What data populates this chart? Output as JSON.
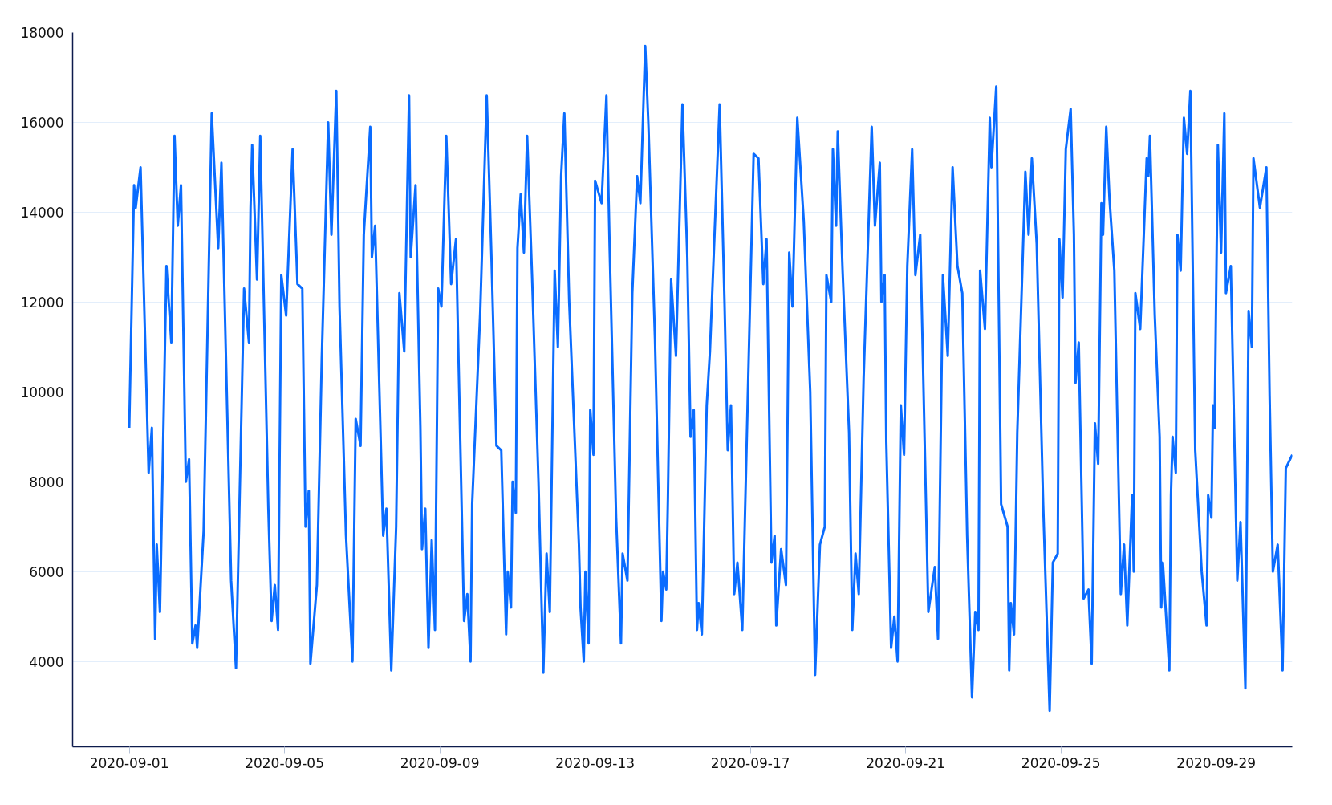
{
  "chart_data": {
    "type": "line",
    "xlim": [
      "2020-08-30T13:00",
      "2020-09-30T23:00"
    ],
    "xticks": [
      "2020-09-01",
      "2020-09-05",
      "2020-09-09",
      "2020-09-13",
      "2020-09-17",
      "2020-09-21",
      "2020-09-25",
      "2020-09-29"
    ],
    "ylim": [
      2100,
      18000
    ],
    "yticks": [
      4000,
      6000,
      8000,
      10000,
      12000,
      14000,
      16000,
      18000
    ],
    "grid": "y",
    "x": [
      "2020-09-01T00:00",
      "2020-09-01T03:00",
      "2020-09-01T04:00",
      "2020-09-01T07:00",
      "2020-09-01T12:00",
      "2020-09-01T14:00",
      "2020-09-01T16:00",
      "2020-09-01T17:00",
      "2020-09-01T19:00",
      "2020-09-01T23:00",
      "2020-09-02T02:00",
      "2020-09-02T04:00",
      "2020-09-02T06:00",
      "2020-09-02T08:00",
      "2020-09-02T11:00",
      "2020-09-02T13:00",
      "2020-09-02T15:00",
      "2020-09-02T17:00",
      "2020-09-02T18:00",
      "2020-09-02T22:00",
      "2020-09-03T03:00",
      "2020-09-03T07:00",
      "2020-09-03T09:00",
      "2020-09-03T15:00",
      "2020-09-03T18:00",
      "2020-09-03T23:00",
      "2020-09-04T02:00",
      "2020-09-04T03:00",
      "2020-09-04T04:00",
      "2020-09-04T07:00",
      "2020-09-04T09:00",
      "2020-09-04T14:00",
      "2020-09-04T16:00",
      "2020-09-04T18:00",
      "2020-09-04T20:00",
      "2020-09-04T22:00",
      "2020-09-05T01:00",
      "2020-09-05T05:00",
      "2020-09-05T08:00",
      "2020-09-05T11:00",
      "2020-09-05T13:00",
      "2020-09-05T15:00",
      "2020-09-05T16:00",
      "2020-09-05T20:00",
      "2020-09-05T23:00",
      "2020-09-06T03:00",
      "2020-09-06T05:00",
      "2020-09-06T08:00",
      "2020-09-06T10:00",
      "2020-09-06T14:00",
      "2020-09-06T18:00",
      "2020-09-06T20:00",
      "2020-09-06T23:00",
      "2020-09-07T01:00",
      "2020-09-07T05:00",
      "2020-09-07T06:00",
      "2020-09-07T08:00",
      "2020-09-07T13:00",
      "2020-09-07T15:00",
      "2020-09-07T18:00",
      "2020-09-07T21:00",
      "2020-09-07T23:00",
      "2020-09-08T02:00",
      "2020-09-08T05:00",
      "2020-09-08T06:00",
      "2020-09-08T09:00",
      "2020-09-08T12:00",
      "2020-09-08T13:00",
      "2020-09-08T15:00",
      "2020-09-08T17:00",
      "2020-09-08T19:00",
      "2020-09-08T21:00",
      "2020-09-08T23:00",
      "2020-09-09T01:00",
      "2020-09-09T04:00",
      "2020-09-09T07:00",
      "2020-09-09T10:00",
      "2020-09-09T15:00",
      "2020-09-09T17:00",
      "2020-09-09T19:00",
      "2020-09-09T20:00",
      "2020-09-10T01:00",
      "2020-09-10T05:00",
      "2020-09-10T08:00",
      "2020-09-10T11:00",
      "2020-09-10T14:00",
      "2020-09-10T17:00",
      "2020-09-10T18:00",
      "2020-09-10T20:00",
      "2020-09-10T21:00",
      "2020-09-10T23:00",
      "2020-09-11T00:00",
      "2020-09-11T02:00",
      "2020-09-11T04:00",
      "2020-09-11T06:00",
      "2020-09-11T09:00",
      "2020-09-11T13:00",
      "2020-09-11T16:00",
      "2020-09-11T18:00",
      "2020-09-11T20:00",
      "2020-09-11T23:00",
      "2020-09-12T01:00",
      "2020-09-12T03:00",
      "2020-09-12T05:00",
      "2020-09-12T08:00",
      "2020-09-12T14:00",
      "2020-09-12T15:00",
      "2020-09-12T17:00",
      "2020-09-12T18:00",
      "2020-09-12T20:00",
      "2020-09-12T21:00",
      "2020-09-12T23:00",
      "2020-09-13T00:00",
      "2020-09-13T04:00",
      "2020-09-13T07:00",
      "2020-09-13T09:00",
      "2020-09-13T13:00",
      "2020-09-13T16:00",
      "2020-09-13T17:00",
      "2020-09-13T20:00",
      "2020-09-13T23:00",
      "2020-09-14T02:00",
      "2020-09-14T04:00",
      "2020-09-14T07:00",
      "2020-09-14T09:00",
      "2020-09-14T13:00",
      "2020-09-14T17:00",
      "2020-09-14T18:00",
      "2020-09-14T20:00",
      "2020-09-14T21:00",
      "2020-09-14T23:00",
      "2020-09-15T02:00",
      "2020-09-15T06:00",
      "2020-09-15T09:00",
      "2020-09-15T11:00",
      "2020-09-15T13:00",
      "2020-09-15T15:00",
      "2020-09-15T16:00",
      "2020-09-15T18:00",
      "2020-09-15T21:00",
      "2020-09-15T23:00",
      "2020-09-16T05:00",
      "2020-09-16T08:00",
      "2020-09-16T10:00",
      "2020-09-16T12:00",
      "2020-09-16T14:00",
      "2020-09-16T16:00",
      "2020-09-16T19:00",
      "2020-09-16T22:00",
      "2020-09-17T02:00",
      "2020-09-17T05:00",
      "2020-09-17T08:00",
      "2020-09-17T10:00",
      "2020-09-17T13:00",
      "2020-09-17T15:00",
      "2020-09-17T16:00",
      "2020-09-17T19:00",
      "2020-09-17T22:00",
      "2020-09-18T00:00",
      "2020-09-18T02:00",
      "2020-09-18T05:00",
      "2020-09-18T09:00",
      "2020-09-18T13:00",
      "2020-09-18T16:00",
      "2020-09-18T19:00",
      "2020-09-18T22:00",
      "2020-09-18T23:00",
      "2020-09-19T02:00",
      "2020-09-19T03:00",
      "2020-09-19T05:00",
      "2020-09-19T06:00",
      "2020-09-19T09:00",
      "2020-09-19T13:00",
      "2020-09-19T15:00",
      "2020-09-19T17:00",
      "2020-09-19T19:00",
      "2020-09-19T22:00",
      "2020-09-20T03:00",
      "2020-09-20T05:00",
      "2020-09-20T08:00",
      "2020-09-20T09:00",
      "2020-09-20T11:00",
      "2020-09-20T12:00",
      "2020-09-20T15:00",
      "2020-09-20T17:00",
      "2020-09-20T19:00",
      "2020-09-20T21:00",
      "2020-09-20T23:00",
      "2020-09-21T01:00",
      "2020-09-21T04:00",
      "2020-09-21T06:00",
      "2020-09-21T09:00",
      "2020-09-21T14:00",
      "2020-09-21T16:00",
      "2020-09-21T18:00",
      "2020-09-21T20:00",
      "2020-09-21T23:00",
      "2020-09-22T02:00",
      "2020-09-22T05:00",
      "2020-09-22T08:00",
      "2020-09-22T11:00",
      "2020-09-22T14:00",
      "2020-09-22T17:00",
      "2020-09-22T19:00",
      "2020-09-22T21:00",
      "2020-09-22T22:00",
      "2020-09-23T01:00",
      "2020-09-23T04:00",
      "2020-09-23T05:00",
      "2020-09-23T08:00",
      "2020-09-23T11:00",
      "2020-09-23T15:00",
      "2020-09-23T16:00",
      "2020-09-23T17:00",
      "2020-09-23T19:00",
      "2020-09-23T21:00",
      "2020-09-24T02:00",
      "2020-09-24T04:00",
      "2020-09-24T06:00",
      "2020-09-24T09:00",
      "2020-09-24T13:00",
      "2020-09-24T17:00",
      "2020-09-24T19:00",
      "2020-09-24T22:00",
      "2020-09-24T23:00",
      "2020-09-25T01:00",
      "2020-09-25T03:00",
      "2020-09-25T06:00",
      "2020-09-25T08:00",
      "2020-09-25T09:00",
      "2020-09-25T11:00",
      "2020-09-25T14:00",
      "2020-09-25T17:00",
      "2020-09-25T19:00",
      "2020-09-25T21:00",
      "2020-09-25T23:00",
      "2020-09-26T01:00",
      "2020-09-26T02:00",
      "2020-09-26T04:00",
      "2020-09-26T06:00",
      "2020-09-26T09:00",
      "2020-09-26T13:00",
      "2020-09-26T15:00",
      "2020-09-26T17:00",
      "2020-09-26T20:00",
      "2020-09-26T21:00",
      "2020-09-26T22:00",
      "2020-09-27T01:00",
      "2020-09-27T05:00",
      "2020-09-27T06:00",
      "2020-09-27T07:00",
      "2020-09-27T10:00",
      "2020-09-27T13:00",
      "2020-09-27T14:00",
      "2020-09-27T15:00",
      "2020-09-27T19:00",
      "2020-09-27T20:00",
      "2020-09-27T21:00",
      "2020-09-27T23:00",
      "2020-09-28T00:00",
      "2020-09-28T02:00",
      "2020-09-28T04:00",
      "2020-09-28T06:00",
      "2020-09-28T08:00",
      "2020-09-28T11:00",
      "2020-09-28T15:00",
      "2020-09-28T18:00",
      "2020-09-28T19:00",
      "2020-09-28T21:00",
      "2020-09-28T22:00",
      "2020-09-28T23:00",
      "2020-09-29T01:00",
      "2020-09-29T03:00",
      "2020-09-29T05:00",
      "2020-09-29T06:00",
      "2020-09-29T09:00",
      "2020-09-29T13:00",
      "2020-09-29T15:00",
      "2020-09-29T18:00",
      "2020-09-29T20:00",
      "2020-09-29T22:00",
      "2020-09-29T23:00",
      "2020-09-30T03:00",
      "2020-09-30T07:00",
      "2020-09-30T09:00",
      "2020-09-30T11:00",
      "2020-09-30T14:00",
      "2020-09-30T17:00",
      "2020-09-30T19:00",
      "2020-09-30T23:00"
    ],
    "series": [
      {
        "color": "#0a6cff",
        "values": [
          9200,
          14600,
          14100,
          15000,
          8200,
          9200,
          4500,
          6600,
          5100,
          12800,
          11100,
          15700,
          13700,
          14600,
          8000,
          8500,
          4400,
          4800,
          4300,
          6900,
          16200,
          13200,
          15100,
          5800,
          3850,
          12300,
          11100,
          14100,
          15500,
          12500,
          15700,
          7400,
          4900,
          5700,
          4700,
          12600,
          11700,
          15400,
          12400,
          12300,
          7000,
          7800,
          3950,
          5700,
          10700,
          16000,
          13500,
          16700,
          11900,
          6800,
          4000,
          9400,
          8800,
          13500,
          15900,
          13000,
          13700,
          6800,
          7400,
          3800,
          7000,
          12200,
          10900,
          16600,
          13000,
          14600,
          9200,
          6500,
          7400,
          4300,
          6700,
          4700,
          12300,
          11900,
          15700,
          12400,
          13400,
          4900,
          5500,
          4000,
          7500,
          11800,
          16600,
          12900,
          8800,
          8700,
          4600,
          6000,
          5200,
          8000,
          7300,
          13200,
          14400,
          13100,
          15700,
          12600,
          8000,
          3750,
          6400,
          5100,
          12700,
          11000,
          14800,
          16200,
          12000,
          6600,
          5200,
          4000,
          6000,
          4400,
          9600,
          8600,
          14700,
          14200,
          16600,
          13200,
          7200,
          4400,
          6400,
          5800,
          12200,
          14800,
          14200,
          17700,
          15900,
          11200,
          4900,
          6000,
          5600,
          7600,
          12500,
          10800,
          16400,
          13000,
          9000,
          9600,
          4700,
          5300,
          4600,
          9700,
          10900,
          16400,
          12000,
          8700,
          9700,
          5500,
          6200,
          4700,
          9300,
          15300,
          15200,
          12400,
          13400,
          6200,
          6800,
          4800,
          6500,
          5700,
          13100,
          11900,
          16100,
          13800,
          10000,
          3700,
          6600,
          7000,
          12600,
          12000,
          15400,
          13700,
          15800,
          12700,
          9100,
          4700,
          6400,
          5500,
          10300,
          15900,
          13700,
          15100,
          12000,
          12600,
          8900,
          4300,
          5000,
          4000,
          9700,
          8600,
          12800,
          15400,
          12600,
          13500,
          5100,
          5600,
          6100,
          4500,
          12600,
          10800,
          15000,
          12800,
          12200,
          6800,
          3200,
          5100,
          4700,
          12700,
          11400,
          16100,
          15000,
          16800,
          7500,
          7000,
          3800,
          5300,
          4600,
          9100,
          14900,
          13500,
          15200,
          13300,
          7500,
          2900,
          6200,
          6400,
          13400,
          12100,
          15400,
          16300,
          13500,
          10200,
          11100,
          5400,
          5600,
          3950,
          9300,
          8400,
          14200,
          13500,
          15900,
          14300,
          12700,
          5500,
          6600,
          4800,
          7700,
          6000,
          12200,
          11400,
          15200,
          14800,
          15700,
          11700,
          9000,
          5200,
          6200,
          3800,
          7700,
          9000,
          8200,
          13500,
          12700,
          16100,
          15300,
          16700,
          8700,
          6000,
          4800,
          7700,
          7200,
          9700,
          9200,
          15500,
          13100,
          16200,
          12200,
          12800,
          5800,
          7100,
          3400,
          11800,
          11000,
          15200,
          14100,
          15000,
          9900,
          6000,
          6600,
          3800,
          8300,
          8600
        ]
      }
    ]
  }
}
